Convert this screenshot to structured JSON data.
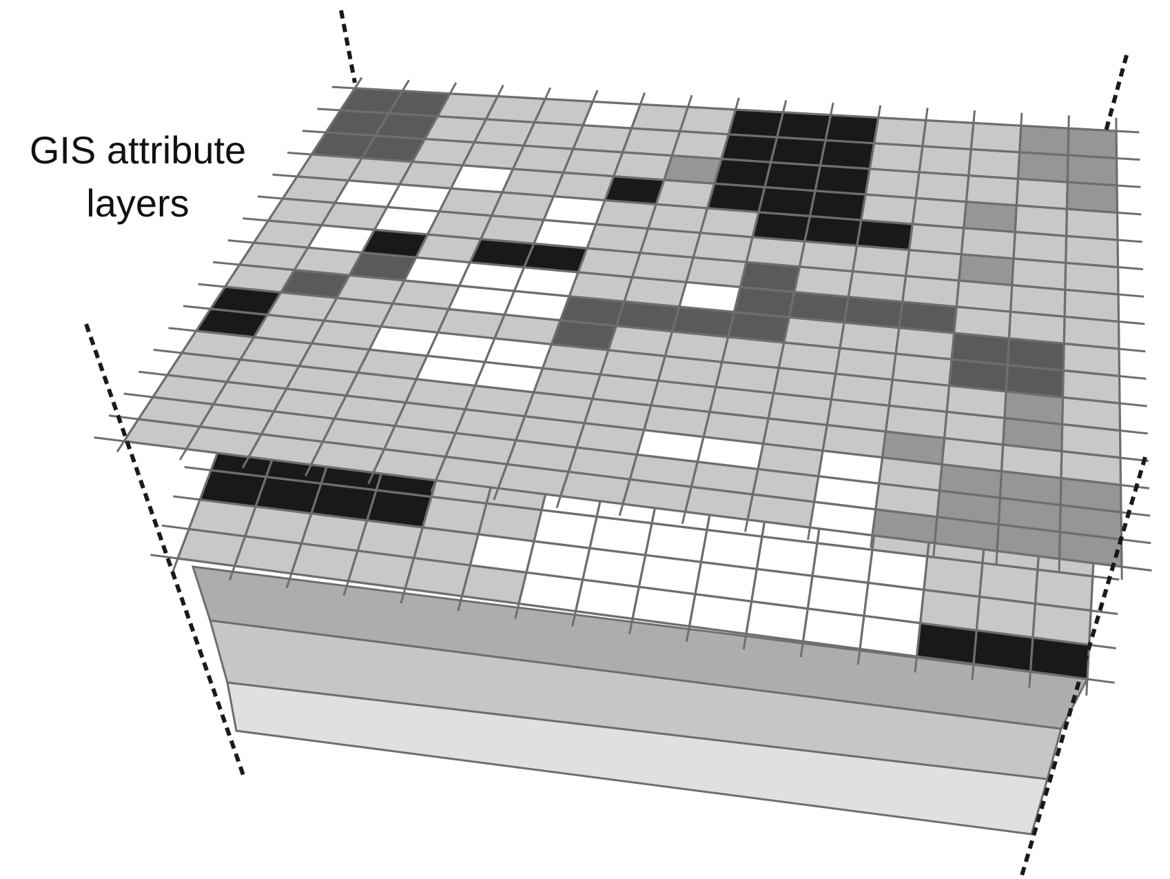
{
  "label": {
    "line1": "GIS attribute",
    "line2": "layers"
  },
  "palette": {
    "background": "#ffffff",
    "grid_line": "#6e6e6e",
    "dashed_line": "#1a1a1a",
    "value_colors": {
      "0": "#ffffff",
      "1": "#c8c8c8",
      "2": "#969696",
      "3": "#5a5a5a",
      "4": "#191919"
    },
    "plain_layer_fills": [
      "#adadad",
      "#c6c6c6",
      "#e0e0e0"
    ]
  },
  "layers": [
    {
      "name": "top-grid-layer",
      "rows": [
        "3311101144411122",
        "3311111144411122",
        "3311111244411112",
        "1110114144411211",
        "1001101114441111",
        "1101101111111211",
        "1041441113111111",
        "1130001103333111",
        "1311003333111331",
        "4111113111111331",
        "4110001111111121",
        "1111001111111121",
        "1111111111112111",
        "1111111100101222",
        "1111111111101222",
        "1111111111102222"
      ]
    },
    {
      "name": "second-grid-layer",
      "rows": [
        "4444111111111111",
        "4444110000001111",
        "4444110000000111",
        "1111100000000111",
        "1111110000000444"
      ]
    },
    {
      "name": "plain-layer-3"
    },
    {
      "name": "plain-layer-4"
    },
    {
      "name": "plain-layer-5"
    }
  ]
}
